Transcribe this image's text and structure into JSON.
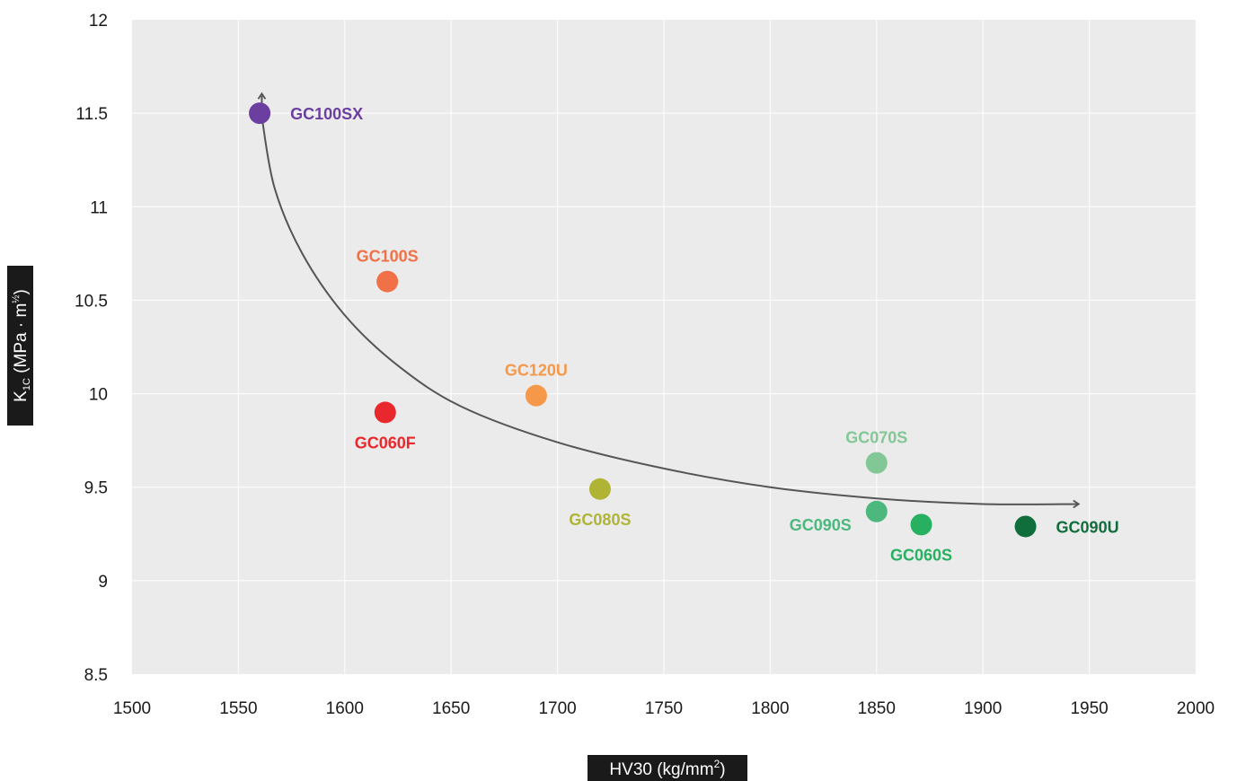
{
  "chart_data": {
    "type": "scatter",
    "title": "",
    "xlabel": {
      "main": "HV30 (kg/mm",
      "sup": "2",
      "tail": ")"
    },
    "ylabel": {
      "main": "K",
      "sub": "1C",
      "mid": " (MPa · m",
      "sup": "½",
      "tail": ")"
    },
    "xlim": [
      1500,
      2000
    ],
    "ylim": [
      8.5,
      12
    ],
    "x_ticks": [
      "1500",
      "1550",
      "1600",
      "1650",
      "1700",
      "1750",
      "1800",
      "1850",
      "1900",
      "1950",
      "2000"
    ],
    "y_ticks": [
      "8.5",
      "9",
      "9.5",
      "10",
      "10.5",
      "11",
      "11.5",
      "12"
    ],
    "grid": true,
    "points": [
      {
        "name": "GC100SX",
        "x": 1560,
        "y": 11.5,
        "color": "#6b3fa0",
        "label_pos": "right"
      },
      {
        "name": "GC100S",
        "x": 1620,
        "y": 10.6,
        "color": "#f07048",
        "label_pos": "above"
      },
      {
        "name": "GC060F",
        "x": 1619,
        "y": 9.9,
        "color": "#e8282c",
        "label_pos": "below"
      },
      {
        "name": "GC120U",
        "x": 1690,
        "y": 9.99,
        "color": "#f5984a",
        "label_pos": "above"
      },
      {
        "name": "GC080S",
        "x": 1720,
        "y": 9.49,
        "color": "#b0b435",
        "label_pos": "below"
      },
      {
        "name": "GC070S",
        "x": 1850,
        "y": 9.63,
        "color": "#82c896",
        "label_pos": "above"
      },
      {
        "name": "GC090S",
        "x": 1850,
        "y": 9.37,
        "color": "#4cb87e",
        "label_pos": "left"
      },
      {
        "name": "GC060S",
        "x": 1871,
        "y": 9.3,
        "color": "#26b060",
        "label_pos": "below"
      },
      {
        "name": "GC090U",
        "x": 1920,
        "y": 9.29,
        "color": "#0f6e3c",
        "label_pos": "right"
      }
    ],
    "trend_curve": {
      "color": "#555555",
      "points": [
        [
          1561,
          11.48
        ],
        [
          1567,
          11.1
        ],
        [
          1580,
          10.75
        ],
        [
          1600,
          10.42
        ],
        [
          1625,
          10.15
        ],
        [
          1655,
          9.93
        ],
        [
          1700,
          9.74
        ],
        [
          1750,
          9.6
        ],
        [
          1800,
          9.5
        ],
        [
          1850,
          9.44
        ],
        [
          1900,
          9.41
        ],
        [
          1945,
          9.41
        ]
      ],
      "arrows": [
        "start-up",
        "end-right"
      ]
    }
  }
}
